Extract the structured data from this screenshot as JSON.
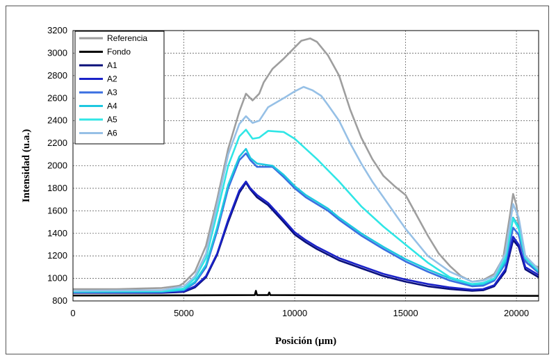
{
  "chart_data": {
    "type": "line",
    "xlabel": "Posición (µm)",
    "ylabel": "Intensidad (u.a.)",
    "xlim": [
      0,
      21000
    ],
    "ylim": [
      800,
      3200
    ],
    "xticks": [
      "0",
      "5000",
      "10000",
      "15000",
      "20000"
    ],
    "yticks": [
      "800",
      "1000",
      "1200",
      "1400",
      "1600",
      "1800",
      "2000",
      "2200",
      "2400",
      "2600",
      "2800",
      "3000",
      "3200"
    ],
    "grid": true,
    "legend_position": "top-left",
    "series": [
      {
        "name": "Referencia",
        "color": "#9e9e9e",
        "points": [
          [
            0,
            905
          ],
          [
            2000,
            905
          ],
          [
            3000,
            910
          ],
          [
            4000,
            915
          ],
          [
            4800,
            935
          ],
          [
            5000,
            960
          ],
          [
            5500,
            1060
          ],
          [
            6000,
            1290
          ],
          [
            6500,
            1700
          ],
          [
            7000,
            2150
          ],
          [
            7500,
            2480
          ],
          [
            7800,
            2640
          ],
          [
            8100,
            2580
          ],
          [
            8400,
            2640
          ],
          [
            8600,
            2740
          ],
          [
            9000,
            2860
          ],
          [
            9500,
            2950
          ],
          [
            10000,
            3050
          ],
          [
            10300,
            3110
          ],
          [
            10700,
            3130
          ],
          [
            11000,
            3100
          ],
          [
            11500,
            2980
          ],
          [
            12000,
            2800
          ],
          [
            12500,
            2500
          ],
          [
            13000,
            2250
          ],
          [
            13500,
            2060
          ],
          [
            14000,
            1910
          ],
          [
            14500,
            1820
          ],
          [
            15000,
            1740
          ],
          [
            15500,
            1560
          ],
          [
            16000,
            1380
          ],
          [
            16500,
            1220
          ],
          [
            17000,
            1110
          ],
          [
            17500,
            1020
          ],
          [
            18000,
            970
          ],
          [
            18500,
            985
          ],
          [
            19000,
            1040
          ],
          [
            19400,
            1180
          ],
          [
            19700,
            1550
          ],
          [
            19850,
            1750
          ],
          [
            20000,
            1650
          ],
          [
            20200,
            1280
          ],
          [
            20500,
            1130
          ],
          [
            21000,
            1100
          ]
        ]
      },
      {
        "name": "Fondo",
        "color": "#000000",
        "points": [
          [
            0,
            848
          ],
          [
            5000,
            850
          ],
          [
            8200,
            852
          ],
          [
            8250,
            890
          ],
          [
            8300,
            852
          ],
          [
            8800,
            852
          ],
          [
            8850,
            875
          ],
          [
            8900,
            852
          ],
          [
            15000,
            848
          ],
          [
            21000,
            845
          ]
        ]
      },
      {
        "name": "A1",
        "color": "#0a0f7a",
        "points": [
          [
            0,
            872
          ],
          [
            4000,
            872
          ],
          [
            5000,
            880
          ],
          [
            5500,
            920
          ],
          [
            6000,
            1010
          ],
          [
            6500,
            1210
          ],
          [
            7000,
            1500
          ],
          [
            7500,
            1760
          ],
          [
            7800,
            1850
          ],
          [
            8000,
            1790
          ],
          [
            8300,
            1720
          ],
          [
            8800,
            1650
          ],
          [
            9500,
            1500
          ],
          [
            10000,
            1390
          ],
          [
            10500,
            1320
          ],
          [
            11000,
            1260
          ],
          [
            12000,
            1160
          ],
          [
            13000,
            1090
          ],
          [
            14000,
            1020
          ],
          [
            15000,
            970
          ],
          [
            16000,
            930
          ],
          [
            17000,
            905
          ],
          [
            18000,
            890
          ],
          [
            18500,
            895
          ],
          [
            19000,
            930
          ],
          [
            19500,
            1060
          ],
          [
            19850,
            1340
          ],
          [
            20100,
            1280
          ],
          [
            20400,
            1080
          ],
          [
            21000,
            1010
          ]
        ]
      },
      {
        "name": "A2",
        "color": "#1a22c8",
        "points": [
          [
            0,
            875
          ],
          [
            4000,
            875
          ],
          [
            5000,
            885
          ],
          [
            5500,
            930
          ],
          [
            6000,
            1020
          ],
          [
            6500,
            1220
          ],
          [
            7000,
            1520
          ],
          [
            7500,
            1780
          ],
          [
            7800,
            1860
          ],
          [
            8000,
            1800
          ],
          [
            8300,
            1740
          ],
          [
            8800,
            1670
          ],
          [
            9500,
            1520
          ],
          [
            10000,
            1410
          ],
          [
            10500,
            1340
          ],
          [
            11000,
            1280
          ],
          [
            12000,
            1180
          ],
          [
            13000,
            1110
          ],
          [
            14000,
            1040
          ],
          [
            15000,
            990
          ],
          [
            16000,
            950
          ],
          [
            17000,
            920
          ],
          [
            18000,
            900
          ],
          [
            18500,
            905
          ],
          [
            19000,
            940
          ],
          [
            19500,
            1080
          ],
          [
            19850,
            1370
          ],
          [
            20100,
            1300
          ],
          [
            20400,
            1100
          ],
          [
            21000,
            1030
          ]
        ]
      },
      {
        "name": "A3",
        "color": "#3a6fe0",
        "points": [
          [
            0,
            878
          ],
          [
            4000,
            880
          ],
          [
            5000,
            895
          ],
          [
            5500,
            960
          ],
          [
            6000,
            1100
          ],
          [
            6500,
            1420
          ],
          [
            7000,
            1800
          ],
          [
            7500,
            2050
          ],
          [
            7800,
            2110
          ],
          [
            8000,
            2050
          ],
          [
            8300,
            1990
          ],
          [
            9000,
            1990
          ],
          [
            9500,
            1900
          ],
          [
            10000,
            1800
          ],
          [
            10500,
            1720
          ],
          [
            11000,
            1660
          ],
          [
            11500,
            1600
          ],
          [
            12000,
            1520
          ],
          [
            12500,
            1450
          ],
          [
            13000,
            1380
          ],
          [
            14000,
            1260
          ],
          [
            15000,
            1150
          ],
          [
            16000,
            1060
          ],
          [
            17000,
            980
          ],
          [
            18000,
            930
          ],
          [
            18500,
            935
          ],
          [
            19000,
            980
          ],
          [
            19500,
            1130
          ],
          [
            19850,
            1450
          ],
          [
            20100,
            1390
          ],
          [
            20400,
            1150
          ],
          [
            21000,
            1050
          ]
        ]
      },
      {
        "name": "A4",
        "color": "#1ec8e0",
        "points": [
          [
            0,
            880
          ],
          [
            4000,
            882
          ],
          [
            5000,
            900
          ],
          [
            5500,
            970
          ],
          [
            6000,
            1120
          ],
          [
            6500,
            1450
          ],
          [
            7000,
            1830
          ],
          [
            7500,
            2080
          ],
          [
            7800,
            2150
          ],
          [
            8000,
            2070
          ],
          [
            8300,
            2020
          ],
          [
            9000,
            2000
          ],
          [
            9500,
            1920
          ],
          [
            10000,
            1820
          ],
          [
            10500,
            1740
          ],
          [
            11000,
            1680
          ],
          [
            11500,
            1620
          ],
          [
            12000,
            1540
          ],
          [
            12500,
            1470
          ],
          [
            13000,
            1400
          ],
          [
            14000,
            1280
          ],
          [
            15000,
            1170
          ],
          [
            16000,
            1080
          ],
          [
            17000,
            1000
          ],
          [
            18000,
            945
          ],
          [
            18500,
            950
          ],
          [
            19000,
            995
          ],
          [
            19500,
            1150
          ],
          [
            19850,
            1540
          ],
          [
            20100,
            1460
          ],
          [
            20400,
            1180
          ],
          [
            21000,
            1060
          ]
        ]
      },
      {
        "name": "A5",
        "color": "#30e6e6",
        "points": [
          [
            0,
            885
          ],
          [
            4000,
            888
          ],
          [
            5000,
            910
          ],
          [
            5500,
            1000
          ],
          [
            6000,
            1180
          ],
          [
            6500,
            1580
          ],
          [
            7000,
            2000
          ],
          [
            7500,
            2260
          ],
          [
            7800,
            2320
          ],
          [
            8100,
            2240
          ],
          [
            8400,
            2250
          ],
          [
            8800,
            2310
          ],
          [
            9500,
            2300
          ],
          [
            10000,
            2240
          ],
          [
            10500,
            2150
          ],
          [
            11000,
            2060
          ],
          [
            11500,
            1960
          ],
          [
            12000,
            1860
          ],
          [
            12500,
            1750
          ],
          [
            13000,
            1640
          ],
          [
            14000,
            1460
          ],
          [
            15000,
            1300
          ],
          [
            16000,
            1140
          ],
          [
            17000,
            1010
          ],
          [
            18000,
            950
          ],
          [
            18500,
            960
          ],
          [
            19000,
            1000
          ],
          [
            19500,
            1180
          ],
          [
            19850,
            1530
          ],
          [
            20100,
            1440
          ],
          [
            20400,
            1180
          ],
          [
            21000,
            1070
          ]
        ]
      },
      {
        "name": "A6",
        "color": "#96c0e6",
        "points": [
          [
            0,
            890
          ],
          [
            4000,
            895
          ],
          [
            5000,
            930
          ],
          [
            5500,
            1020
          ],
          [
            6000,
            1220
          ],
          [
            6500,
            1650
          ],
          [
            7000,
            2100
          ],
          [
            7500,
            2370
          ],
          [
            7800,
            2440
          ],
          [
            8100,
            2380
          ],
          [
            8400,
            2400
          ],
          [
            8800,
            2520
          ],
          [
            9500,
            2600
          ],
          [
            10000,
            2660
          ],
          [
            10400,
            2700
          ],
          [
            10800,
            2670
          ],
          [
            11200,
            2620
          ],
          [
            11500,
            2540
          ],
          [
            12000,
            2400
          ],
          [
            12500,
            2200
          ],
          [
            13000,
            2020
          ],
          [
            13500,
            1860
          ],
          [
            14000,
            1720
          ],
          [
            14500,
            1580
          ],
          [
            15000,
            1440
          ],
          [
            15500,
            1320
          ],
          [
            16000,
            1200
          ],
          [
            17000,
            1060
          ],
          [
            18000,
            970
          ],
          [
            18500,
            980
          ],
          [
            19000,
            1020
          ],
          [
            19500,
            1220
          ],
          [
            19850,
            1660
          ],
          [
            20100,
            1540
          ],
          [
            20400,
            1200
          ],
          [
            21000,
            1080
          ]
        ]
      }
    ]
  }
}
